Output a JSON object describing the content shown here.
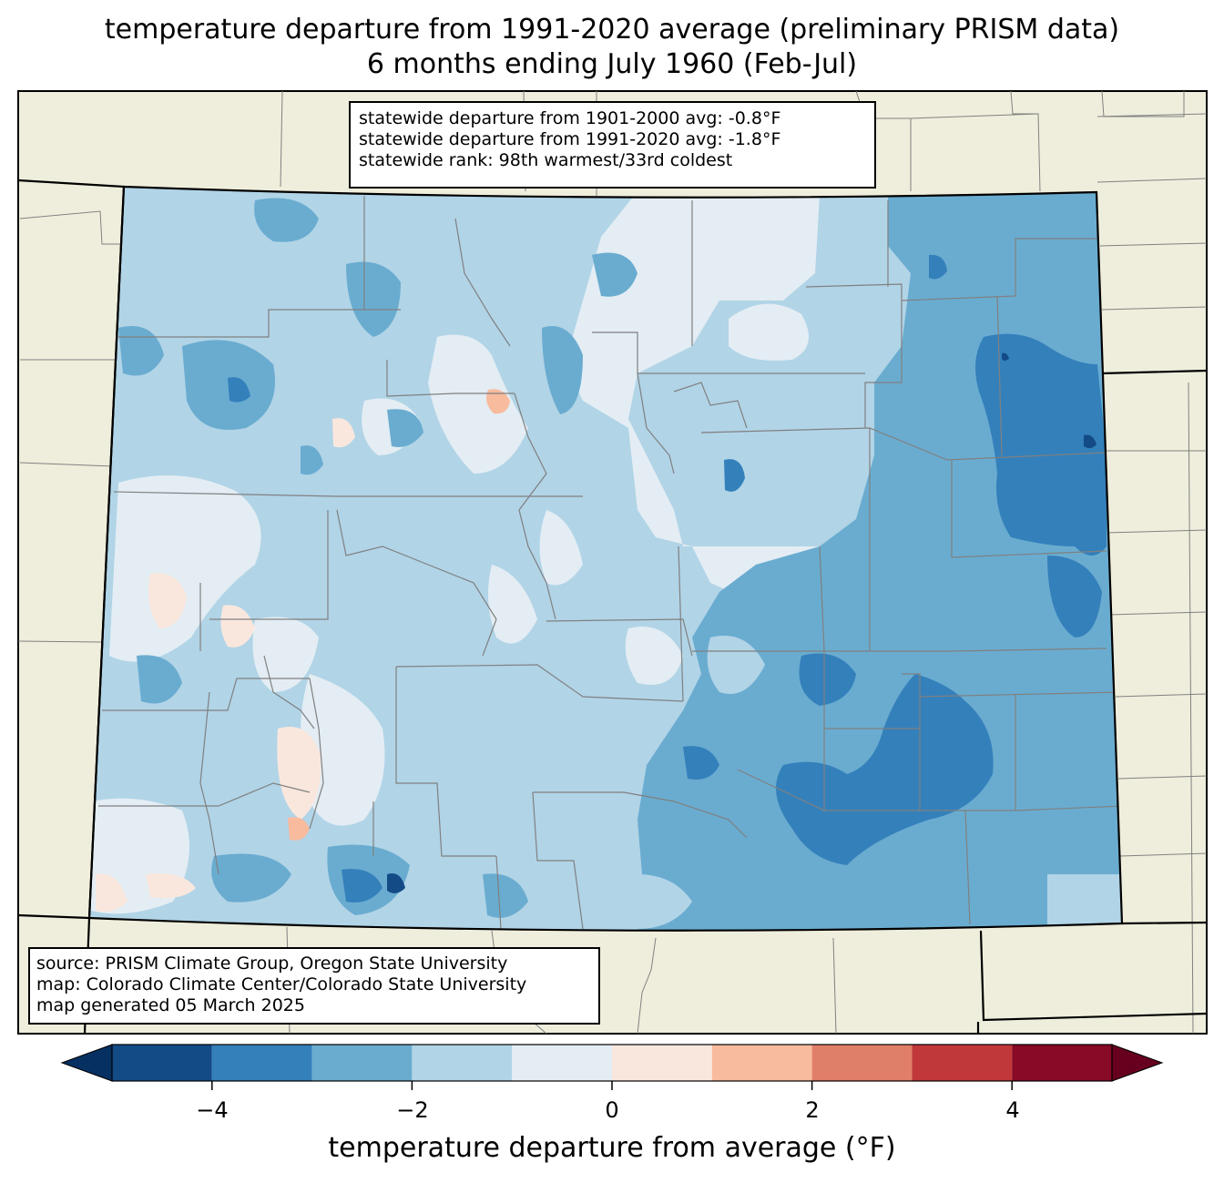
{
  "title": {
    "line1": "temperature departure from 1991-2020 average (preliminary PRISM data)",
    "line2": "6 months ending July 1960 (Feb-Jul)"
  },
  "stats_box": {
    "line1": "statewide departure from 1901-2000 avg: -0.8°F",
    "line2": "statewide departure from 1991-2020 avg: -1.8°F",
    "line3": "statewide rank: 98th warmest/33rd coldest"
  },
  "source_box": {
    "line1": "source: PRISM Climate Group, Oregon State University",
    "line2": "map: Colorado Climate Center/Colorado State University",
    "line3": "map generated 05 March 2025"
  },
  "colorbar": {
    "label": "temperature departure from average (°F)",
    "ticks": [
      "−4",
      "−2",
      "0",
      "2",
      "4"
    ],
    "bins": [
      {
        "from": -5,
        "to": -4,
        "color": "#134b87"
      },
      {
        "from": -4,
        "to": -3,
        "color": "#3480bb"
      },
      {
        "from": -3,
        "to": -2,
        "color": "#6aacd0"
      },
      {
        "from": -2,
        "to": -1,
        "color": "#b1d4e7"
      },
      {
        "from": -1,
        "to": 0,
        "color": "#e3edf3"
      },
      {
        "from": 0,
        "to": 1,
        "color": "#f9e7de"
      },
      {
        "from": 1,
        "to": 2,
        "color": "#f8bb9e"
      },
      {
        "from": 2,
        "to": 3,
        "color": "#e07f69"
      },
      {
        "from": 3,
        "to": 4,
        "color": "#c13839"
      },
      {
        "from": 4,
        "to": 5,
        "color": "#880a26"
      }
    ],
    "under_color": "#053061",
    "over_color": "#67001f"
  },
  "colors": {
    "land": "#efeedc",
    "county_lines": "#808080",
    "state_lines": "#000000"
  }
}
